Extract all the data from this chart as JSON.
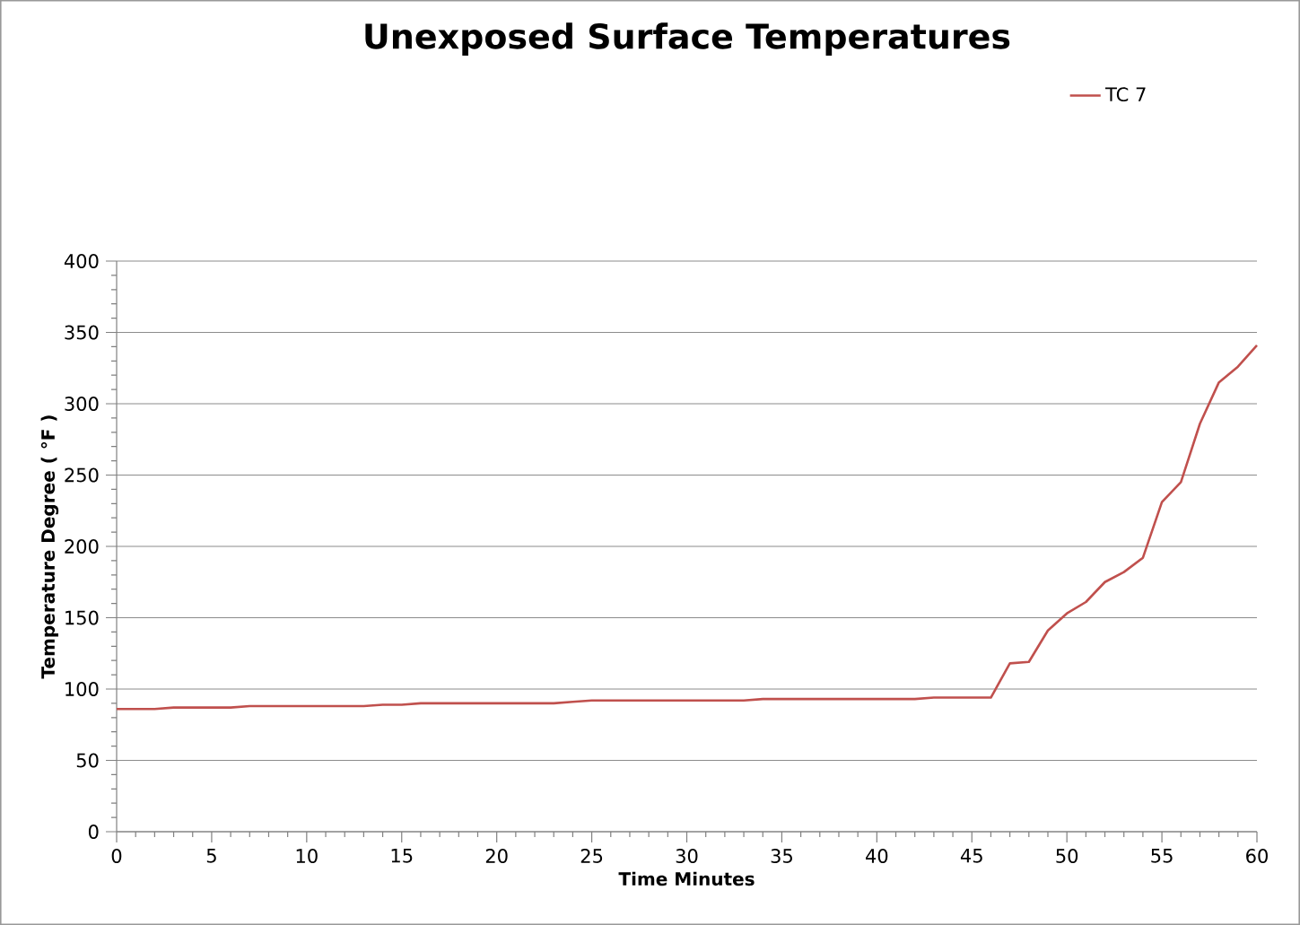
{
  "chart_data": {
    "type": "line",
    "title": "Unexposed Surface Temperatures",
    "xlabel": "Time Minutes",
    "ylabel": "Temperature Degree ( °F )",
    "x": [
      0,
      1,
      2,
      3,
      4,
      5,
      6,
      7,
      8,
      9,
      10,
      11,
      12,
      13,
      14,
      15,
      16,
      17,
      18,
      19,
      20,
      21,
      22,
      23,
      24,
      25,
      26,
      27,
      28,
      29,
      30,
      31,
      32,
      33,
      34,
      35,
      36,
      37,
      38,
      39,
      40,
      41,
      42,
      43,
      44,
      45,
      46,
      47,
      48,
      49,
      50,
      51,
      52,
      53,
      54,
      55,
      56,
      57,
      58,
      59,
      60
    ],
    "series": [
      {
        "name": "TC 7",
        "color": "#c0504d",
        "values": [
          86,
          86,
          86,
          87,
          87,
          87,
          87,
          88,
          88,
          88,
          88,
          88,
          88,
          88,
          89,
          89,
          90,
          90,
          90,
          90,
          90,
          90,
          90,
          90,
          91,
          92,
          92,
          92,
          92,
          92,
          92,
          92,
          92,
          92,
          93,
          93,
          93,
          93,
          93,
          93,
          93,
          93,
          93,
          94,
          94,
          94,
          94,
          118,
          119,
          141,
          153,
          161,
          175,
          182,
          192,
          231,
          245,
          286,
          315,
          326,
          341
        ]
      }
    ],
    "xlim": [
      0,
      60
    ],
    "xticks": [
      0,
      5,
      10,
      15,
      20,
      25,
      30,
      35,
      40,
      45,
      50,
      55,
      60
    ],
    "ylim": [
      0,
      400
    ],
    "yticks": [
      0,
      50,
      100,
      150,
      200,
      250,
      300,
      350,
      400
    ],
    "grid": "y",
    "legend": "top right",
    "marker": "none",
    "line_style": "solid"
  }
}
